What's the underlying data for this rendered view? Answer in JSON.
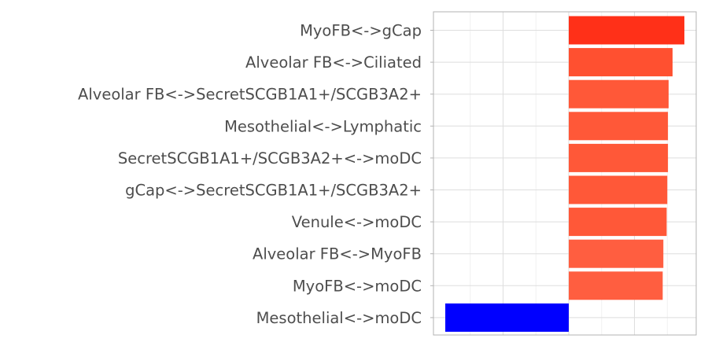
{
  "chart_data": {
    "type": "bar",
    "orientation": "horizontal",
    "title": "",
    "xlabel": "",
    "ylabel": "",
    "grid": true,
    "categories": [
      "MyoFB<->gCap",
      "Alveolar FB<->Ciliated",
      "Alveolar FB<->SecretSCGB1A1+/SCGB3A2+",
      "Mesothelial<->Lymphatic",
      "SecretSCGB1A1+/SCGB3A2+<->moDC",
      "gCap<->SecretSCGB1A1+/SCGB3A2+",
      "Venule<->moDC",
      "Alveolar FB<->MyoFB",
      "MyoFB<->moDC",
      "Mesothelial<->moDC"
    ],
    "values": [
      0.88,
      0.79,
      0.76,
      0.755,
      0.755,
      0.75,
      0.745,
      0.72,
      0.715,
      -0.94
    ],
    "colors": [
      "#ff3018",
      "#ff5030",
      "#ff5838",
      "#ff5838",
      "#ff5838",
      "#ff5838",
      "#ff5838",
      "#ff5e40",
      "#ff5e40",
      "#0000ff"
    ],
    "xlim": [
      -1.03,
      0.97
    ],
    "gridlines": [
      -0.5,
      0,
      0.5
    ],
    "minor_gridlines": [
      -0.75,
      -0.25,
      0.25,
      0.75
    ]
  }
}
